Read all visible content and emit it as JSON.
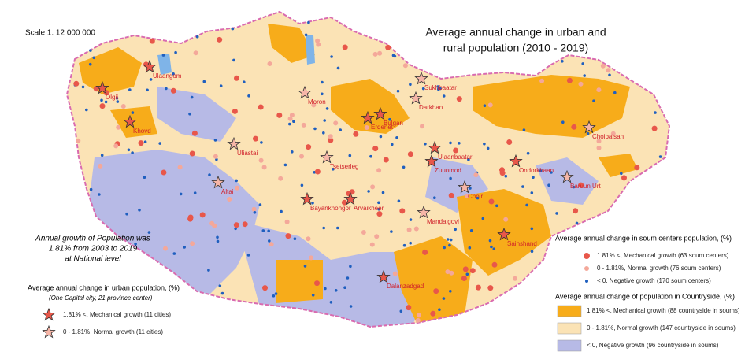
{
  "scale": "Scale 1: 12 000 000",
  "title": [
    "Average annual change in urban and",
    "rural population (2010 - 2019)"
  ],
  "note": [
    "Annual growth of Population was",
    "1.81% from 2003 to 2019",
    "at National level"
  ],
  "urban_legend": {
    "title": "Average annual change in urban population, (%)",
    "subtitle": "(One Capital city, 21 province center)",
    "items": [
      "1.81% <, Mechanical growth (11 cities)",
      "0 - 1.81%, Normal growth (11 cities)"
    ]
  },
  "soum_legend": {
    "title": "Average annual change in soum centers population, (%)",
    "items": [
      "1.81% <, Mechanical growth (63 soum centers)",
      "0 - 1.81%, Normal growth (76 soum centers)",
      "< 0, Negative growth (170 soum centers)"
    ]
  },
  "countryside_legend": {
    "title": "Average annual change of population in Countryside, (%)",
    "items": [
      "1.81% <, Mechanical growth (88 countryside in soums)",
      "0 - 1.81%, Normal growth (147 countryside in soums)",
      "< 0, Negative growth (96 countryside in soums)"
    ]
  },
  "cities": [
    "Ulaangom",
    "Olgii",
    "Khovd",
    "Uliastai",
    "Altai",
    "Bayankhongor",
    "Arvaikheer",
    "Tsetserleg",
    "Moron",
    "Erdenet",
    "Bulgan",
    "Darkhan",
    "Sukhbaatar",
    "Ulaanbaatar",
    "Zuunmod",
    "Choir",
    "Mandalgovi",
    "Dalanzadgad",
    "Sainshand",
    "Baruun Urt",
    "Ondorkhaan",
    "Choibalsan"
  ]
}
